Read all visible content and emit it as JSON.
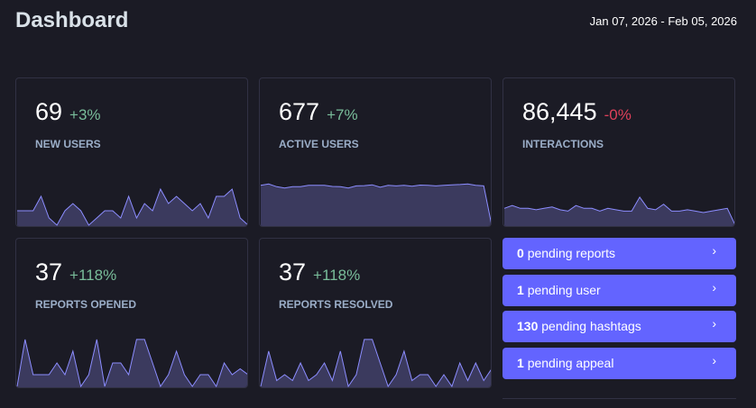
{
  "header": {
    "title": "Dashboard",
    "date_range": "Jan 07, 2026 - Feb 05, 2026"
  },
  "colors": {
    "accent": "#6364ff",
    "positive": "#79bd9a",
    "negative": "#df405a",
    "spark_fill": "#3b3a5e",
    "spark_line": "#8c8dff"
  },
  "metrics": [
    {
      "value": "69",
      "change": "+3%",
      "trend": "up",
      "label": "NEW USERS",
      "series": [
        2,
        2,
        2,
        4,
        1,
        0,
        2,
        3,
        2,
        0,
        1,
        2,
        2,
        1,
        4,
        1,
        3,
        2,
        5,
        3,
        4,
        3,
        2,
        3,
        1,
        4,
        4,
        5,
        1,
        0
      ]
    },
    {
      "value": "677",
      "change": "+7%",
      "trend": "up",
      "label": "ACTIVE USERS",
      "series": [
        15,
        15.5,
        14.5,
        14,
        14.5,
        14.5,
        15,
        15,
        15,
        14.6,
        14.5,
        14,
        14.8,
        14.9,
        15.2,
        14.3,
        15,
        14.8,
        15,
        14.7,
        15.1,
        15,
        14.8,
        15,
        15.2,
        15.3,
        15.5,
        15,
        14.8,
        0
      ]
    },
    {
      "value": "86,445",
      "change": "-0%",
      "trend": "down",
      "label": "INTERACTIONS",
      "series": [
        6,
        7,
        6,
        6,
        5.5,
        6,
        6.5,
        5.5,
        5,
        7,
        6,
        6,
        5,
        6,
        5.5,
        5,
        5,
        10,
        6,
        5.5,
        7.5,
        5,
        5,
        5.5,
        5,
        4.5,
        5,
        5.5,
        6,
        0
      ]
    },
    {
      "value": "37",
      "change": "+118%",
      "trend": "up",
      "label": "REPORTS OPENED",
      "series": [
        0,
        4,
        1,
        1,
        1,
        2,
        1,
        3,
        0,
        1,
        4,
        0,
        2,
        2,
        1,
        4,
        4,
        2,
        0,
        1,
        3,
        1,
        0,
        1,
        1,
        0,
        2,
        1,
        1.5,
        1
      ]
    },
    {
      "value": "37",
      "change": "+118%",
      "trend": "up",
      "label": "REPORTS RESOLVED",
      "series": [
        0,
        3,
        0.5,
        1,
        0.5,
        2,
        0.5,
        1,
        2,
        0.5,
        3,
        0,
        1,
        4,
        4,
        2,
        0,
        1,
        3,
        0.5,
        1,
        1,
        0,
        1,
        0,
        2,
        0.5,
        2,
        0.5,
        1.5
      ]
    }
  ],
  "pending": [
    {
      "count": "0",
      "text": "pending reports"
    },
    {
      "count": "1",
      "text": "pending user"
    },
    {
      "count": "130",
      "text": "pending hashtags"
    },
    {
      "count": "1",
      "text": "pending appeal"
    }
  ],
  "chevron_icon": "chevron-right-icon"
}
